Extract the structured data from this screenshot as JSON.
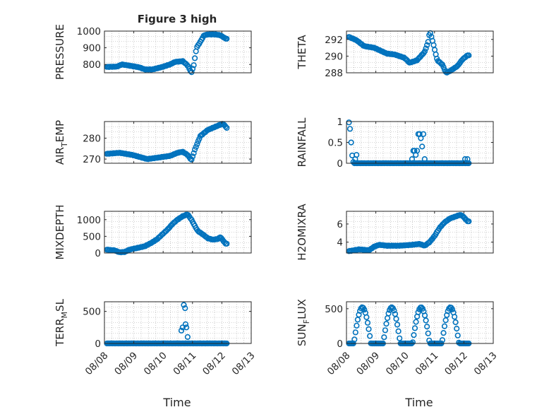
{
  "figure": {
    "title": "Figure 3 high",
    "xlabel": "Time",
    "x_tick_labels": [
      "08/08",
      "08/09",
      "08/10",
      "08/11",
      "08/12",
      "08/13"
    ]
  },
  "colors": {
    "marker": "#0072BD",
    "axis": "#262626",
    "grid": "#a8a8a8",
    "background": "#ffffff"
  },
  "chart_data": [
    {
      "type": "scatter",
      "marker": "open-circle",
      "grid": "minor-dotted",
      "title": "Figure 3 high",
      "ylabel": "PRESSURE",
      "xlabel": "",
      "x_range": [
        "08/08",
        "08/13"
      ],
      "ylim": [
        750,
        1000
      ],
      "yticks": [
        800,
        900,
        1000
      ],
      "x_start": "08/08 02:00",
      "x_end": "08/12 04:00",
      "keypoints": [
        [
          0,
          785
        ],
        [
          0.4,
          787
        ],
        [
          0.6,
          800
        ],
        [
          1.0,
          790
        ],
        [
          1.3,
          782
        ],
        [
          1.5,
          770
        ],
        [
          1.8,
          770
        ],
        [
          2.2,
          785
        ],
        [
          2.5,
          800
        ],
        [
          2.7,
          815
        ],
        [
          3.0,
          820
        ],
        [
          3.2,
          795
        ],
        [
          3.35,
          750
        ],
        [
          3.45,
          800
        ],
        [
          3.55,
          900
        ],
        [
          3.7,
          935
        ],
        [
          3.85,
          975
        ],
        [
          4.0,
          980
        ],
        [
          4.3,
          980
        ],
        [
          4.5,
          975
        ],
        [
          4.7,
          955
        ]
      ]
    },
    {
      "type": "scatter",
      "marker": "open-circle",
      "grid": "minor-dotted",
      "ylabel": "THETA",
      "xlabel": "",
      "x_range": [
        "08/08",
        "08/13"
      ],
      "ylim": [
        288,
        293
      ],
      "yticks": [
        288,
        290,
        292
      ],
      "x_start": "08/08 02:00",
      "x_end": "08/12 04:00",
      "keypoints": [
        [
          0,
          292.3
        ],
        [
          0.3,
          291.9
        ],
        [
          0.6,
          291.2
        ],
        [
          1.0,
          291.0
        ],
        [
          1.5,
          290.3
        ],
        [
          1.8,
          290.2
        ],
        [
          2.2,
          289.8
        ],
        [
          2.4,
          289.2
        ],
        [
          2.7,
          289.5
        ],
        [
          3.0,
          290.5
        ],
        [
          3.15,
          291.8
        ],
        [
          3.2,
          293.0
        ],
        [
          3.3,
          292.0
        ],
        [
          3.5,
          289.5
        ],
        [
          3.7,
          289.0
        ],
        [
          3.85,
          288.0
        ],
        [
          4.0,
          288.2
        ],
        [
          4.3,
          288.8
        ],
        [
          4.5,
          289.6
        ],
        [
          4.7,
          290.1
        ]
      ]
    },
    {
      "type": "scatter",
      "marker": "open-circle",
      "grid": "minor-dotted",
      "ylabel": "AIR_TEMP",
      "ylabel_main": "AIR",
      "ylabel_sub": "T",
      "ylabel_rest": "EMP",
      "xlabel": "",
      "x_range": [
        "08/08",
        "08/13"
      ],
      "ylim": [
        268,
        288
      ],
      "yticks": [
        270,
        280
      ],
      "x_start": "08/08 02:00",
      "x_end": "08/12 04:00",
      "keypoints": [
        [
          0,
          272.5
        ],
        [
          0.5,
          273
        ],
        [
          1.0,
          272
        ],
        [
          1.3,
          271
        ],
        [
          1.6,
          270
        ],
        [
          1.9,
          270.5
        ],
        [
          2.2,
          271
        ],
        [
          2.5,
          271.5
        ],
        [
          2.8,
          273
        ],
        [
          3.0,
          273.5
        ],
        [
          3.2,
          272
        ],
        [
          3.35,
          269.5
        ],
        [
          3.5,
          275
        ],
        [
          3.7,
          281
        ],
        [
          4.0,
          284
        ],
        [
          4.4,
          286
        ],
        [
          4.6,
          287
        ],
        [
          4.75,
          285
        ]
      ]
    },
    {
      "type": "scatter",
      "marker": "open-circle",
      "grid": "minor-dotted",
      "ylabel": "RAINFALL",
      "xlabel": "",
      "x_range": [
        "08/08",
        "08/13"
      ],
      "ylim": [
        0,
        1
      ],
      "yticks": [
        0,
        0.5,
        1
      ],
      "x_start": "08/08 02:00",
      "x_end": "08/12 04:00",
      "keypoints": [
        [
          0,
          0.98
        ],
        [
          0.05,
          0.8
        ],
        [
          0.1,
          0.4
        ],
        [
          0.15,
          0.05
        ],
        [
          0.2,
          0
        ],
        [
          4.75,
          0
        ]
      ],
      "spikes": [
        [
          0.3,
          0.2
        ],
        [
          0.25,
          0.1
        ],
        [
          2.5,
          0.1
        ],
        [
          2.55,
          0.3
        ],
        [
          2.6,
          0.3
        ],
        [
          2.65,
          0.2
        ],
        [
          2.7,
          0.3
        ],
        [
          2.75,
          0.7
        ],
        [
          2.8,
          0.7
        ],
        [
          2.85,
          0.6
        ],
        [
          2.9,
          0.4
        ],
        [
          2.95,
          0.7
        ],
        [
          3.0,
          0.1
        ],
        [
          4.6,
          0.1
        ],
        [
          4.7,
          0.1
        ]
      ]
    },
    {
      "type": "scatter",
      "marker": "open-circle",
      "grid": "minor-dotted",
      "ylabel": "MIXDEPTH",
      "xlabel": "",
      "x_range": [
        "08/08",
        "08/13"
      ],
      "ylim": [
        0,
        1250
      ],
      "yticks": [
        0,
        500,
        1000
      ],
      "x_start": "08/08 02:00",
      "x_end": "08/12 04:00",
      "keypoints": [
        [
          0,
          100
        ],
        [
          0.3,
          80
        ],
        [
          0.5,
          20
        ],
        [
          0.7,
          30
        ],
        [
          0.9,
          100
        ],
        [
          1.2,
          150
        ],
        [
          1.5,
          200
        ],
        [
          1.8,
          320
        ],
        [
          2.0,
          420
        ],
        [
          2.2,
          560
        ],
        [
          2.4,
          700
        ],
        [
          2.6,
          870
        ],
        [
          2.8,
          1000
        ],
        [
          3.0,
          1100
        ],
        [
          3.2,
          1160
        ],
        [
          3.35,
          1000
        ],
        [
          3.45,
          860
        ],
        [
          3.6,
          660
        ],
        [
          3.8,
          560
        ],
        [
          4.0,
          440
        ],
        [
          4.2,
          400
        ],
        [
          4.4,
          420
        ],
        [
          4.5,
          480
        ],
        [
          4.6,
          380
        ],
        [
          4.7,
          280
        ]
      ]
    },
    {
      "type": "scatter",
      "marker": "open-circle",
      "grid": "minor-dotted",
      "ylabel": "H2OMIXRA",
      "xlabel": "",
      "x_range": [
        "08/08",
        "08/13"
      ],
      "ylim": [
        2.8,
        7.4
      ],
      "yticks": [
        4,
        6
      ],
      "x_start": "08/08 02:00",
      "x_end": "08/12 04:00",
      "keypoints": [
        [
          0,
          3.0
        ],
        [
          0.4,
          3.2
        ],
        [
          0.8,
          3.1
        ],
        [
          1.0,
          3.5
        ],
        [
          1.2,
          3.7
        ],
        [
          1.5,
          3.6
        ],
        [
          2.0,
          3.6
        ],
        [
          2.5,
          3.7
        ],
        [
          2.8,
          3.8
        ],
        [
          3.0,
          3.6
        ],
        [
          3.2,
          4.0
        ],
        [
          3.4,
          4.7
        ],
        [
          3.6,
          5.6
        ],
        [
          3.8,
          6.2
        ],
        [
          4.0,
          6.6
        ],
        [
          4.2,
          6.8
        ],
        [
          4.4,
          7.0
        ],
        [
          4.5,
          6.9
        ],
        [
          4.7,
          6.3
        ]
      ]
    },
    {
      "type": "scatter",
      "marker": "open-circle",
      "grid": "minor-dotted",
      "ylabel": "TERR_MSL",
      "ylabel_main": "TERR",
      "ylabel_sub": "M",
      "ylabel_rest": "SL",
      "xlabel": "Time",
      "x_range": [
        "08/08",
        "08/13"
      ],
      "ylim": [
        0,
        650
      ],
      "yticks": [
        0,
        500
      ],
      "x_start": "08/08 02:00",
      "x_end": "08/12 04:00",
      "x_tick_labels": [
        "08/08",
        "08/09",
        "08/10",
        "08/11",
        "08/12",
        "08/13"
      ],
      "keypoints": [
        [
          0,
          0
        ],
        [
          4.75,
          0
        ]
      ],
      "spikes": [
        [
          2.95,
          200
        ],
        [
          3.0,
          250
        ],
        [
          3.05,
          600
        ],
        [
          3.1,
          550
        ],
        [
          3.12,
          300
        ],
        [
          3.15,
          250
        ],
        [
          3.2,
          100
        ]
      ]
    },
    {
      "type": "scatter",
      "marker": "open-circle",
      "grid": "minor-dotted",
      "ylabel": "SUN_FLUX",
      "ylabel_main": "SUN",
      "ylabel_sub": "F",
      "ylabel_rest": "LUX",
      "xlabel": "Time",
      "x_range": [
        "08/08",
        "08/13"
      ],
      "ylim": [
        0,
        600
      ],
      "yticks": [
        0,
        500
      ],
      "x_start": "08/08 02:00",
      "x_end": "08/12 04:00",
      "x_tick_labels": [
        "08/08",
        "08/09",
        "08/10",
        "08/11",
        "08/12",
        "08/13"
      ],
      "keypoints": [
        [
          0,
          0
        ]
      ],
      "diurnal": true
    }
  ]
}
